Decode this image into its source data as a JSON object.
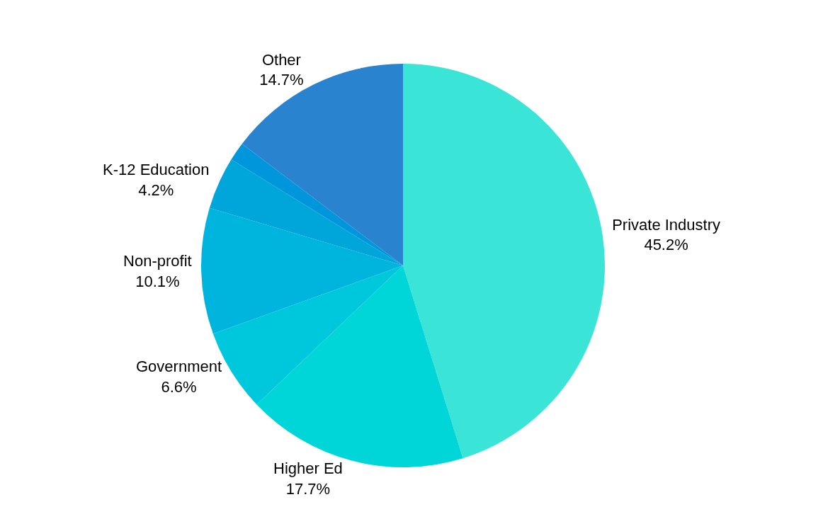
{
  "chart_data": {
    "type": "pie",
    "categories": [
      "Private Industry",
      "Higher Ed",
      "Government",
      "Non-profit",
      "K-12 Education",
      null,
      "Other"
    ],
    "values": [
      45.2,
      17.7,
      6.6,
      10.1,
      4.2,
      1.5,
      14.7
    ],
    "value_labels": [
      "45.2%",
      "17.7%",
      "6.6%",
      "10.1%",
      "4.2%",
      null,
      "14.7%"
    ],
    "colors": [
      "#3ae4d6",
      "#00d5d8",
      "#00c8dc",
      "#00b5dd",
      "#00a5da",
      "#0096dc",
      "#2a83cf"
    ],
    "legend": false
  }
}
